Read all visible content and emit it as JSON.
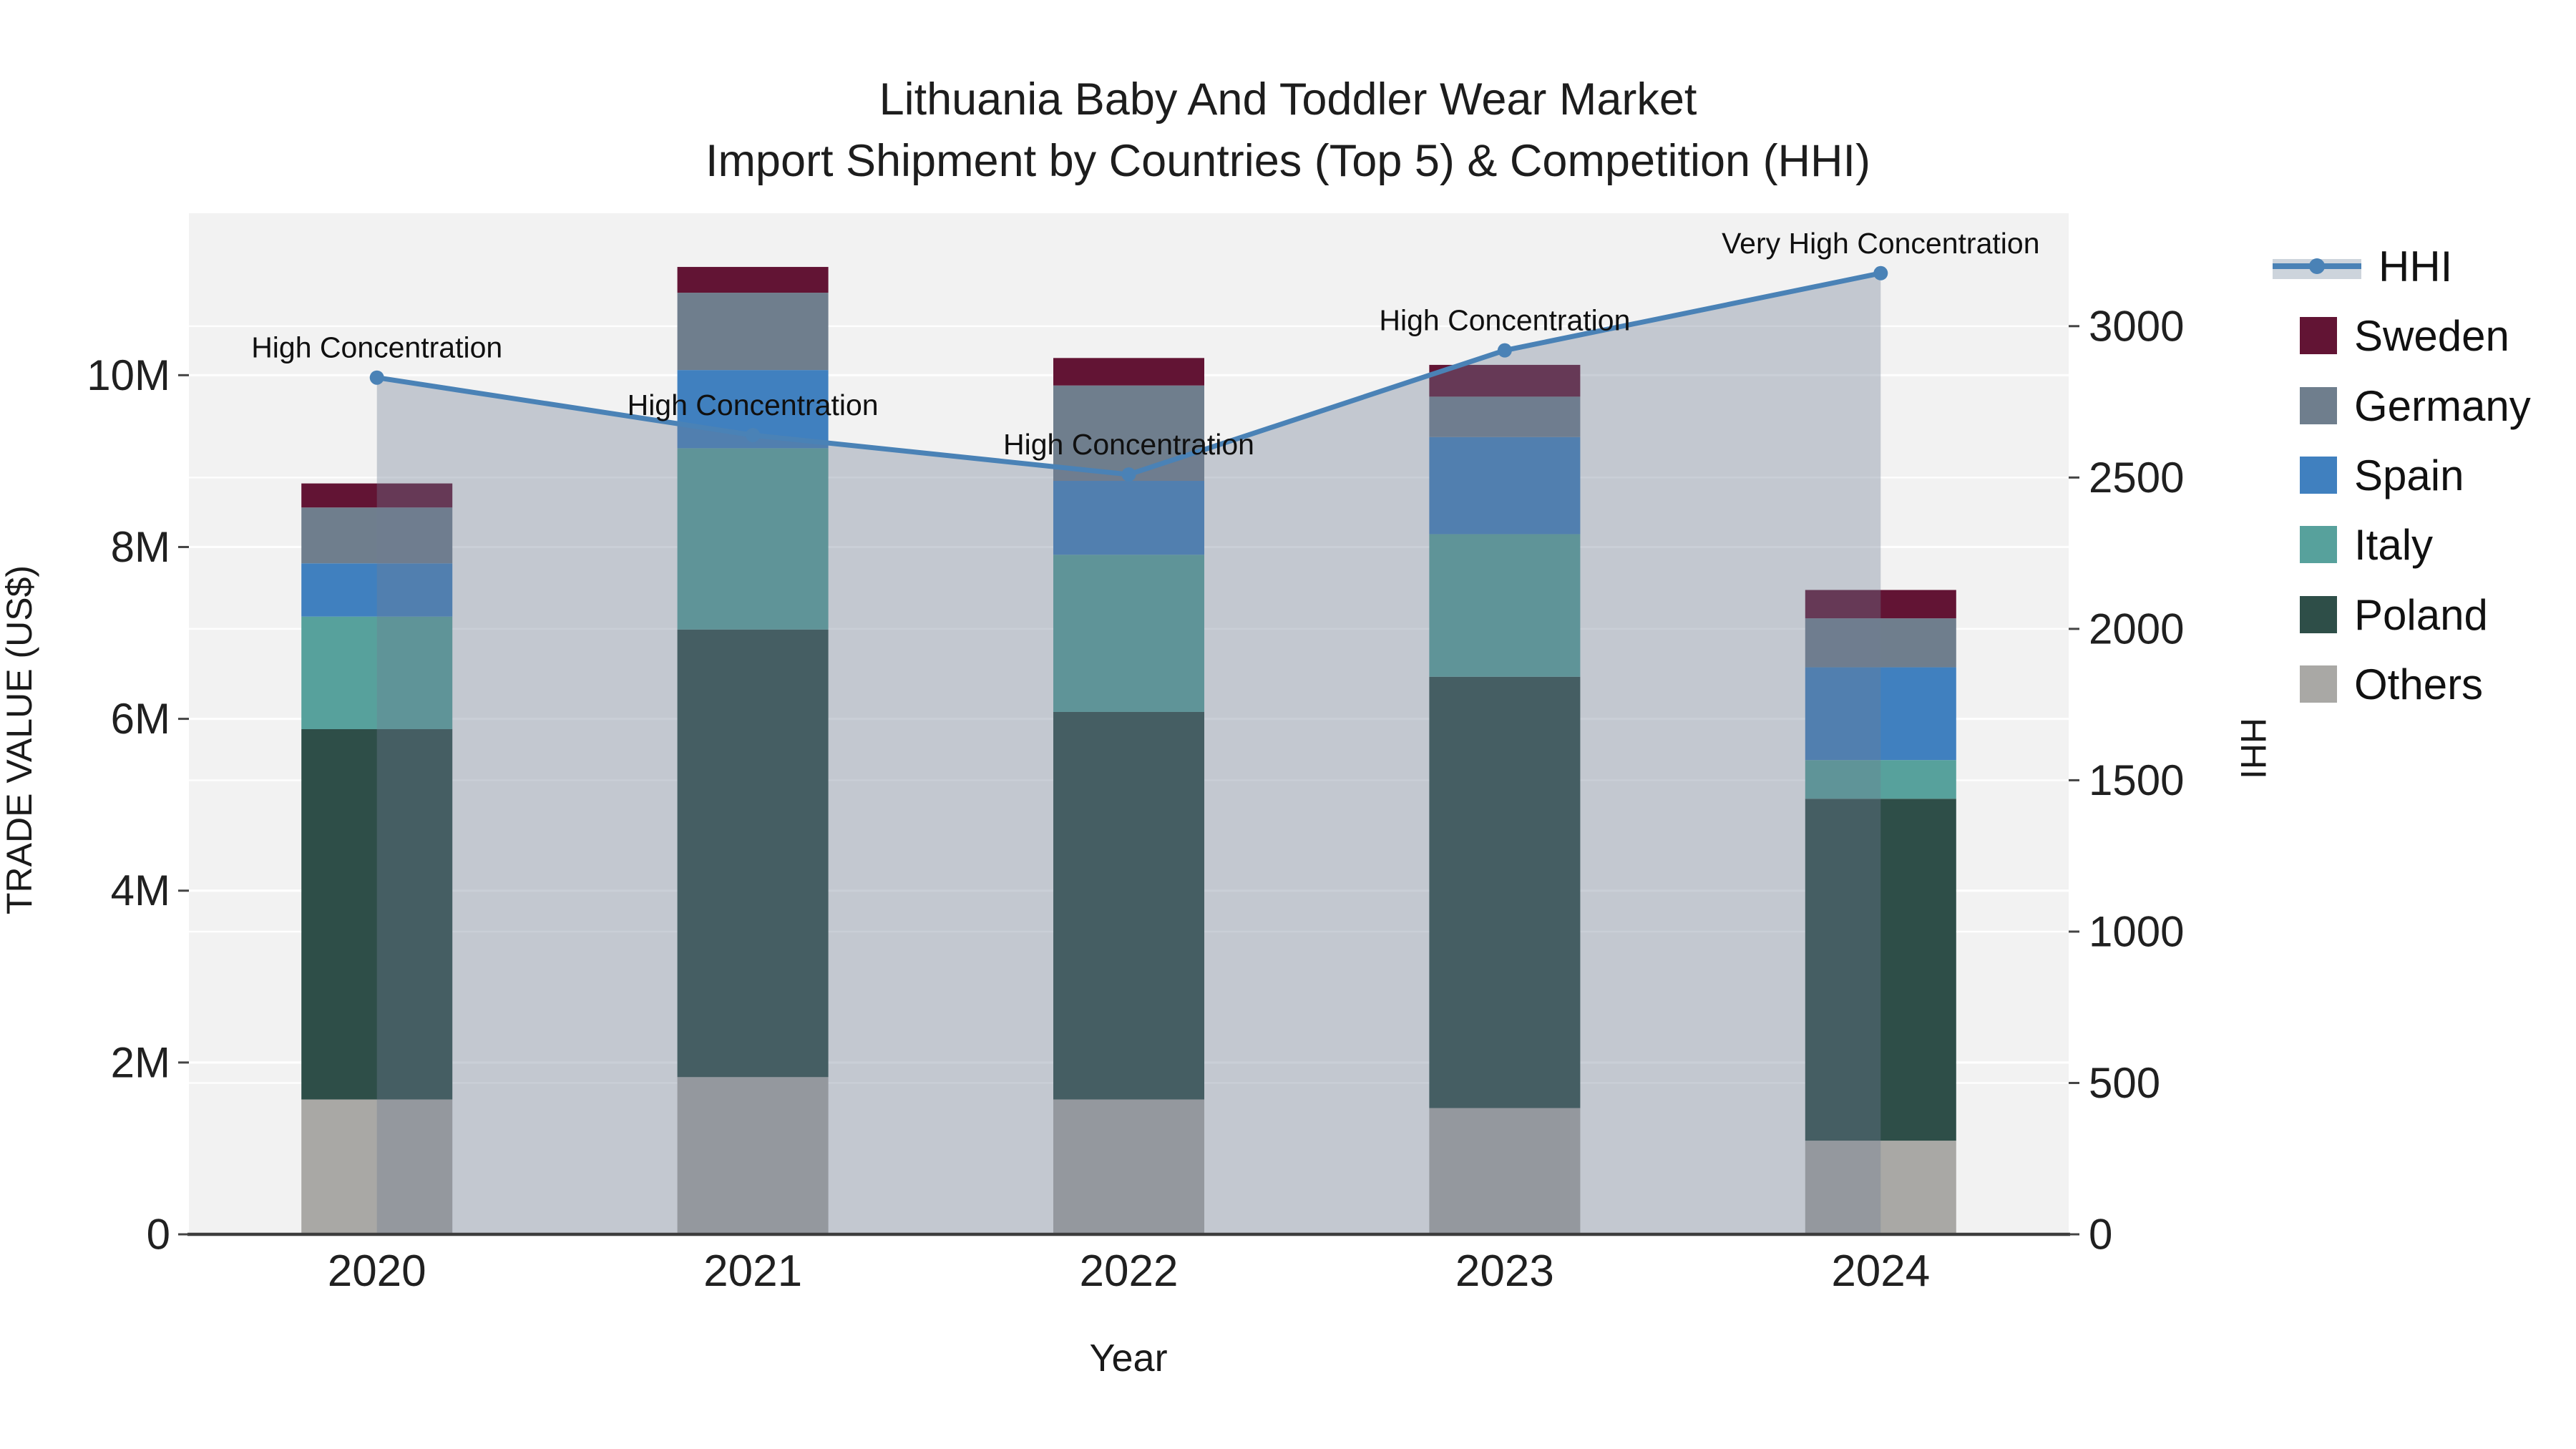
{
  "title": {
    "line1": "Lithuania Baby And Toddler Wear Market",
    "line2": "Import Shipment by Countries (Top 5) & Competition (HHI)"
  },
  "legend": {
    "items": [
      {
        "label": "HHI",
        "type": "line",
        "color": "#4a82b6"
      },
      {
        "label": "Sweden",
        "type": "square",
        "color": "#621434"
      },
      {
        "label": "Germany",
        "type": "square",
        "color": "#6f7e8d"
      },
      {
        "label": "Spain",
        "type": "square",
        "color": "#4080bf"
      },
      {
        "label": "Italy",
        "type": "square",
        "color": "#57a19c"
      },
      {
        "label": "Poland",
        "type": "square",
        "color": "#2e4e48"
      },
      {
        "label": "Others",
        "type": "square",
        "color": "#a9a8a5"
      }
    ]
  },
  "chart_data": {
    "type": "bar",
    "stacked": true,
    "title": "Lithuania Baby And Toddler Wear Market Import Shipment by Countries (Top 5) & Competition (HHI)",
    "categories": [
      "2020",
      "2021",
      "2022",
      "2023",
      "2024"
    ],
    "unit": "M US$",
    "series": [
      {
        "name": "Others",
        "color": "#a9a8a5",
        "values": [
          1.57,
          1.83,
          1.57,
          1.47,
          1.09
        ]
      },
      {
        "name": "Poland",
        "color": "#2e4e48",
        "values": [
          4.31,
          5.21,
          4.51,
          5.02,
          3.98
        ]
      },
      {
        "name": "Italy",
        "color": "#57a19c",
        "values": [
          1.31,
          2.11,
          1.83,
          1.66,
          0.45
        ]
      },
      {
        "name": "Spain",
        "color": "#4080bf",
        "values": [
          0.62,
          0.91,
          0.86,
          1.13,
          1.08
        ]
      },
      {
        "name": "Germany",
        "color": "#6f7e8d",
        "values": [
          0.65,
          0.9,
          1.11,
          0.47,
          0.57
        ]
      },
      {
        "name": "Sweden",
        "color": "#621434",
        "values": [
          0.28,
          0.3,
          0.32,
          0.37,
          0.33
        ]
      }
    ],
    "line_series": {
      "name": "HHI",
      "axis": "right",
      "color": "#4a82b6",
      "area_color": "rgba(112,124,148,0.36)",
      "values": [
        2830,
        2640,
        2510,
        2920,
        3175
      ]
    },
    "annotations": [
      {
        "year": "2020",
        "label": "High Concentration"
      },
      {
        "year": "2021",
        "label": "High Concentration"
      },
      {
        "year": "2022",
        "label": "High Concentration"
      },
      {
        "year": "2023",
        "label": "High Concentration"
      },
      {
        "year": "2024",
        "label": "Very High Concentration"
      }
    ],
    "left_axis": {
      "title": "TRADE VALUE (US$)",
      "tick_labels": [
        "0",
        "2M",
        "4M",
        "6M",
        "8M",
        "10M"
      ],
      "tick_values": [
        0,
        2,
        4,
        6,
        8,
        10
      ],
      "range": [
        0,
        11.885
      ]
    },
    "right_axis": {
      "title": "HHI",
      "tick_labels": [
        "0",
        "500",
        "1000",
        "1500",
        "2000",
        "2500",
        "3000"
      ],
      "tick_values": [
        0,
        500,
        1000,
        1500,
        2000,
        2500,
        3000
      ],
      "range": [
        0,
        3373
      ]
    },
    "x_axis": {
      "title": "Year"
    },
    "grid": true,
    "legend_position": "right",
    "plot_bg": "#f2f2f2",
    "grid_color": "rgba(255,255,255,0.9)",
    "axis_line_color": "#3d3d3d"
  }
}
